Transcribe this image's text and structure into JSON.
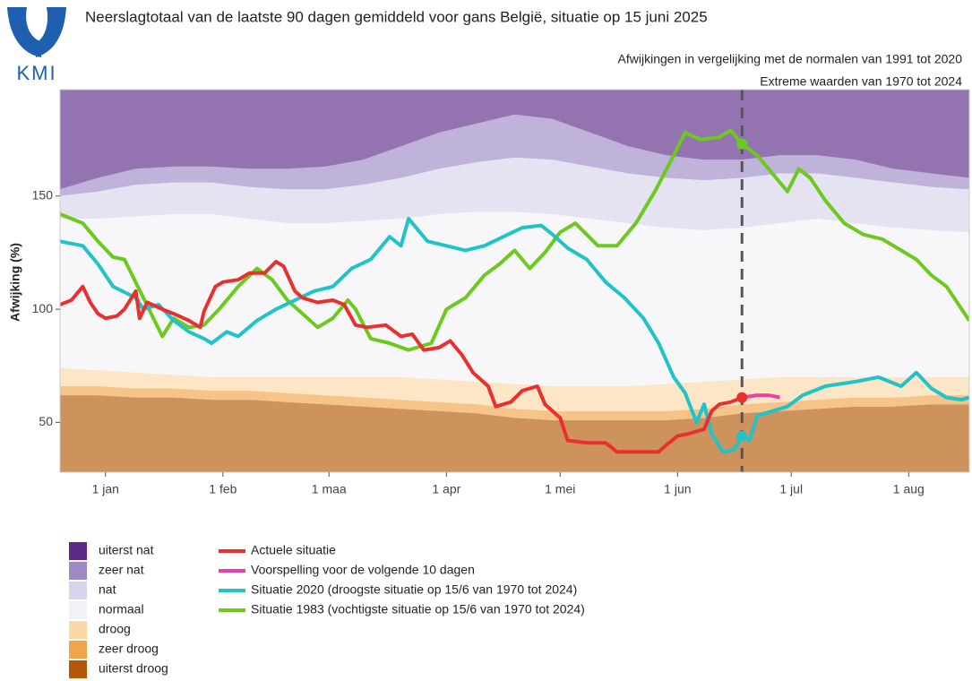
{
  "chart_data": {
    "type": "line",
    "logo_text": "KMI",
    "title": "Neerslagtotaal van de laatste 90 dagen gemiddeld voor gans België, situatie op 15 juni 2025",
    "subtitle": "Afwijkingen in vergelijking met de normalen van 1991 tot 2020",
    "subtitle2": "Extreme waarden van 1970 tot 2024",
    "y_label": "Afwijking (%)",
    "xlim": [
      -12,
      228
    ],
    "xticks": [
      {
        "value": 0,
        "label": "1 jan"
      },
      {
        "value": 31,
        "label": "1 feb"
      },
      {
        "value": 59,
        "label": "1 maa"
      },
      {
        "value": 90,
        "label": "1 apr"
      },
      {
        "value": 120,
        "label": "1 mei"
      },
      {
        "value": 151,
        "label": "1 jun"
      },
      {
        "value": 181,
        "label": "1 jul"
      },
      {
        "value": 212,
        "label": "1 aug"
      }
    ],
    "ylim": [
      28,
      197
    ],
    "yticks": [
      50,
      100,
      150
    ],
    "reference_line": {
      "x": 168
    },
    "band_x": [
      -12,
      -2,
      8,
      18,
      28,
      38,
      48,
      58,
      68,
      78,
      88,
      98,
      108,
      118,
      128,
      138,
      148,
      158,
      168,
      178,
      188,
      198,
      208,
      218,
      228
    ],
    "bands": [
      {
        "name": "uiterst nat",
        "color": "#5b2a86",
        "values": [
          50,
          50,
          50,
          50,
          50,
          50,
          50,
          50,
          50,
          50,
          50,
          50,
          50,
          50,
          50,
          50,
          50,
          50,
          50,
          50,
          50,
          50,
          50,
          50,
          50
        ]
      },
      {
        "name": "zeer nat",
        "color": "#9d8ac4",
        "values": [
          3,
          6,
          7,
          7,
          7,
          8,
          9,
          10,
          11,
          14,
          16,
          17,
          19,
          18,
          15,
          12,
          10,
          9,
          8,
          8,
          8,
          8,
          6,
          6,
          5
        ]
      },
      {
        "name": "nat",
        "color": "#d7d3ea",
        "values": [
          10,
          12,
          14,
          14,
          14,
          14,
          15,
          15,
          16,
          18,
          20,
          22,
          24,
          24,
          23,
          22,
          22,
          22,
          22,
          22,
          20,
          20,
          20,
          19,
          19
        ]
      },
      {
        "name": "normaal",
        "color": "#f2f1f6",
        "values": [
          66,
          67,
          69,
          71,
          72,
          70,
          68,
          68,
          69,
          70,
          73,
          75,
          76,
          76,
          74,
          72,
          69,
          67,
          67,
          68,
          70,
          68,
          66,
          65,
          64
        ]
      },
      {
        "name": "droog",
        "color": "#fbd8a7",
        "values": [
          8,
          7,
          7,
          6,
          6,
          6,
          7,
          8,
          9,
          10,
          10,
          10,
          11,
          11,
          11,
          11,
          12,
          12,
          11,
          11,
          10,
          9,
          9,
          8,
          8
        ]
      },
      {
        "name": "zeer droog",
        "color": "#f1a54a",
        "values": [
          4,
          4,
          4,
          4,
          4,
          4,
          4,
          4,
          4,
          4,
          4,
          4,
          4,
          4,
          4,
          4,
          4,
          4,
          4,
          4,
          4,
          4,
          4,
          4,
          4
        ]
      },
      {
        "name": "uiterst droog",
        "color": "#b35806",
        "values": [
          62,
          62,
          61,
          61,
          60,
          60,
          59,
          58,
          57,
          56,
          55,
          54,
          52,
          51,
          51,
          51,
          51,
          52,
          54,
          55,
          56,
          57,
          57,
          58,
          58
        ]
      }
    ],
    "series": [
      {
        "name": "Actuele situatie",
        "color": "#e8312f",
        "x": [
          -12,
          -9,
          -6,
          -4,
          -2,
          0,
          3,
          5,
          8,
          9,
          11,
          15,
          18,
          22,
          25,
          26,
          29,
          31,
          35,
          38,
          42,
          45,
          47,
          50,
          52,
          56,
          60,
          63,
          66,
          69,
          74,
          78,
          81,
          84,
          88,
          91,
          94,
          97,
          101,
          103,
          107,
          110,
          114,
          116,
          120,
          122,
          127,
          132,
          135,
          140,
          146,
          148,
          151,
          154,
          158,
          160,
          162,
          165,
          168
        ],
        "values": [
          102,
          104,
          110,
          103,
          98,
          96,
          97,
          100,
          108,
          96,
          103,
          100,
          98,
          95,
          92,
          99,
          110,
          112,
          113,
          116,
          116,
          121,
          119,
          108,
          105,
          103,
          104,
          102,
          93,
          92,
          93,
          88,
          89,
          82,
          83,
          86,
          80,
          72,
          66,
          57,
          59,
          64,
          66,
          58,
          52,
          42,
          41,
          41,
          37,
          37,
          37,
          40,
          44,
          45,
          47,
          55,
          58,
          59,
          61
        ]
      },
      {
        "name": "Voorspelling voor de volgende 10 dagen",
        "color": "#ec3fa6",
        "x": [
          168,
          172,
          175,
          178
        ],
        "values": [
          61,
          62,
          62,
          61
        ]
      },
      {
        "name": "Situatie 2020 (droogste situatie op 15/6 van 1970 tot 2024)",
        "color": "#1fc3c8",
        "x": [
          -12,
          -6,
          -2,
          2,
          8,
          10,
          14,
          18,
          22,
          26,
          28,
          32,
          35,
          40,
          45,
          50,
          55,
          60,
          65,
          70,
          75,
          78,
          80,
          85,
          90,
          95,
          100,
          105,
          110,
          115,
          118,
          122,
          127,
          132,
          137,
          142,
          146,
          150,
          153,
          156,
          158,
          160,
          163,
          166,
          168,
          170,
          172,
          176,
          180,
          184,
          190,
          198,
          204,
          210,
          214,
          218,
          222,
          226,
          228
        ],
        "values": [
          130,
          128,
          120,
          110,
          105,
          100,
          102,
          95,
          90,
          87,
          85,
          90,
          88,
          95,
          100,
          104,
          108,
          110,
          118,
          122,
          132,
          128,
          140,
          130,
          128,
          126,
          128,
          132,
          136,
          137,
          133,
          127,
          122,
          112,
          105,
          96,
          85,
          70,
          63,
          50,
          58,
          45,
          37,
          38,
          44,
          42,
          53,
          55,
          57,
          62,
          66,
          68,
          70,
          66,
          72,
          65,
          61,
          60,
          61
        ]
      },
      {
        "name": "Situatie 1983 (vochtigste situatie op 15/6 van 1970 tot 2024)",
        "color": "#6cc91e",
        "x": [
          -12,
          -6,
          -2,
          2,
          5,
          15,
          18,
          22,
          26,
          30,
          35,
          40,
          44,
          48,
          52,
          56,
          60,
          64,
          66,
          70,
          75,
          80,
          86,
          90,
          95,
          100,
          104,
          108,
          112,
          116,
          120,
          124,
          127,
          130,
          135,
          140,
          145,
          150,
          153,
          157,
          162,
          165,
          168,
          172,
          176,
          180,
          183,
          186,
          190,
          195,
          200,
          205,
          210,
          214,
          218,
          222,
          226,
          228
        ],
        "values": [
          142,
          138,
          130,
          123,
          122,
          88,
          96,
          92,
          93,
          100,
          110,
          118,
          113,
          104,
          98,
          92,
          96,
          104,
          100,
          87,
          85,
          82,
          85,
          100,
          105,
          115,
          120,
          126,
          118,
          125,
          134,
          138,
          133,
          128,
          128,
          138,
          152,
          168,
          178,
          175,
          176,
          179,
          173,
          168,
          160,
          152,
          162,
          158,
          148,
          138,
          133,
          131,
          126,
          122,
          115,
          110,
          100,
          95
        ]
      }
    ]
  }
}
